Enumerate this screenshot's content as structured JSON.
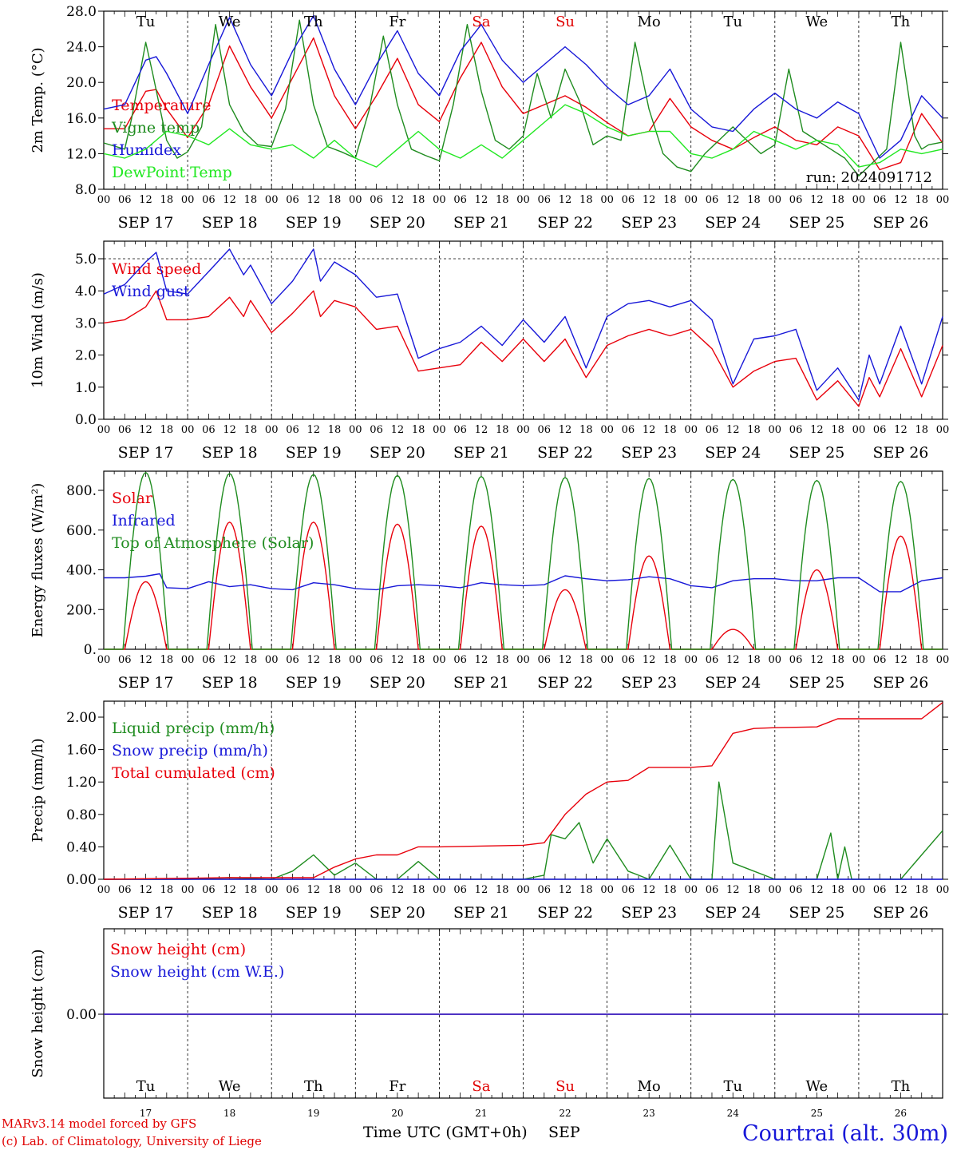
{
  "labels": {
    "days": [
      "Tu",
      "We",
      "Th",
      "Fr",
      "Sa",
      "Su",
      "Mo",
      "Tu",
      "We",
      "Th"
    ],
    "day_colors": [
      "#000000",
      "#000000",
      "#000000",
      "#000000",
      "#e00000",
      "#e00000",
      "#000000",
      "#000000",
      "#000000",
      "#000000"
    ],
    "dates": [
      "SEP 17",
      "SEP 18",
      "SEP 19",
      "SEP 20",
      "SEP 21",
      "SEP 22",
      "SEP 23",
      "SEP 24",
      "SEP 25",
      "SEP 26"
    ],
    "day_numbers": [
      "17",
      "18",
      "19",
      "20",
      "21",
      "22",
      "23",
      "24",
      "25",
      "26"
    ],
    "hour_ticks": [
      "00",
      "06",
      "12",
      "18"
    ],
    "run": "run: 2024091712",
    "footer_model": "MARv3.14 model forced by GFS",
    "footer_lab": "(c) Lab. of Climatology, University of Liege",
    "x_axis_title": "Time UTC (GMT+0h)",
    "month": "SEP",
    "location": "Courtrai (alt. 30m)"
  },
  "chart_data": [
    {
      "type": "line",
      "ylabel": "2m Temp. (°C)",
      "ylim": [
        8,
        28
      ],
      "yticks": [
        "8.0",
        "12.0",
        "16.0",
        "20.0",
        "24.0",
        "28.0"
      ],
      "x_unit": "hours from 2024-09-17 00 UTC",
      "series": [
        {
          "name": "Temperature",
          "color": "#e8000b",
          "x": [
            0,
            6,
            12,
            15,
            18,
            24,
            30,
            36,
            42,
            48,
            54,
            60,
            66,
            72,
            78,
            84,
            90,
            96,
            102,
            108,
            114,
            120,
            126,
            132,
            138,
            144,
            150,
            156,
            162,
            168,
            174,
            180,
            186,
            192,
            198,
            204,
            210,
            216,
            222,
            228,
            234,
            240
          ],
          "y": [
            14.8,
            14.8,
            19,
            19.2,
            17,
            13.8,
            17.5,
            24.1,
            19.5,
            16,
            20.5,
            25,
            18.5,
            14.8,
            18.5,
            22.7,
            17.5,
            15.6,
            20.5,
            24.5,
            19.5,
            16.5,
            17.5,
            18.5,
            17.2,
            15.5,
            14,
            14.5,
            18.2,
            15,
            13.5,
            12.5,
            13.8,
            15,
            13.5,
            13,
            15,
            14,
            10.2,
            11,
            16.5,
            13.2
          ]
        },
        {
          "name": "Vigne temp",
          "color": "#1f8c1f",
          "x": [
            0,
            6,
            8,
            12,
            14,
            18,
            21,
            24,
            28,
            32,
            36,
            40,
            44,
            48,
            52,
            56,
            60,
            64,
            68,
            72,
            76,
            80,
            84,
            88,
            92,
            96,
            100,
            104,
            108,
            112,
            116,
            120,
            124,
            128,
            132,
            136,
            140,
            144,
            148,
            152,
            156,
            160,
            164,
            168,
            172,
            176,
            180,
            184,
            188,
            192,
            196,
            200,
            204,
            208,
            212,
            216,
            220,
            224,
            228,
            232,
            234,
            236,
            240
          ],
          "y": [
            13.2,
            12.5,
            16,
            24.5,
            21,
            13.5,
            11.5,
            12.2,
            15,
            26.5,
            17.5,
            14.5,
            13,
            12.8,
            17,
            27,
            17.5,
            12.8,
            12.2,
            11.5,
            17,
            25.2,
            17.5,
            12.5,
            11.8,
            11.2,
            17.5,
            26.5,
            19,
            13.5,
            12.5,
            14,
            21,
            16,
            21.5,
            18,
            13,
            14,
            13.5,
            24.5,
            17,
            12,
            10.5,
            10,
            12,
            13.5,
            15,
            13.5,
            12,
            13,
            21.5,
            14.5,
            13.5,
            12.5,
            11.5,
            9.5,
            11,
            12.5,
            24.5,
            14,
            12.5,
            13,
            13.3
          ]
        },
        {
          "name": "Humidex",
          "color": "#1818d8",
          "x": [
            0,
            6,
            12,
            15,
            18,
            24,
            30,
            36,
            42,
            48,
            54,
            60,
            66,
            72,
            78,
            84,
            90,
            96,
            102,
            108,
            114,
            120,
            126,
            132,
            138,
            144,
            150,
            156,
            162,
            168,
            174,
            180,
            186,
            192,
            198,
            204,
            210,
            216,
            222,
            228,
            234,
            240
          ],
          "y": [
            17,
            17.5,
            22.5,
            22.9,
            21,
            16.5,
            22,
            27.3,
            22,
            18.5,
            23.5,
            27.5,
            21.5,
            17.5,
            22,
            25.8,
            21,
            18.5,
            23.5,
            26.5,
            22.5,
            20,
            22,
            24,
            22,
            19.5,
            17.5,
            18.5,
            21.5,
            17,
            15,
            14.5,
            17,
            18.8,
            17,
            16,
            17.8,
            16.5,
            11.5,
            13.5,
            18.5,
            16
          ]
        },
        {
          "name": "DewPoint Temp",
          "color": "#22e822",
          "x": [
            0,
            6,
            12,
            18,
            24,
            30,
            36,
            42,
            48,
            54,
            60,
            66,
            72,
            78,
            84,
            90,
            96,
            102,
            108,
            114,
            120,
            126,
            132,
            138,
            144,
            150,
            156,
            162,
            168,
            174,
            180,
            186,
            192,
            198,
            204,
            210,
            216,
            222,
            228,
            234,
            240
          ],
          "y": [
            12,
            11.5,
            12.5,
            14.5,
            14,
            13,
            14.8,
            13,
            12.5,
            13,
            11.5,
            13.5,
            11.5,
            10.5,
            12.5,
            14.5,
            12.5,
            11.5,
            13,
            11.5,
            13.5,
            15.5,
            17.5,
            16.5,
            15,
            14,
            14.5,
            14.5,
            12,
            11.5,
            12.5,
            14.5,
            13.5,
            12.5,
            13.5,
            13,
            10.5,
            11,
            12.5,
            12,
            12.5
          ]
        }
      ]
    },
    {
      "type": "line",
      "ylabel": "10m Wind (m/s)",
      "ylim": [
        0,
        5.5
      ],
      "yticks": [
        "0.0",
        "1.0",
        "2.0",
        "3.0",
        "4.0",
        "5.0"
      ],
      "reference_line": 5.0,
      "x_unit": "hours from 2024-09-17 00 UTC",
      "series": [
        {
          "name": "Wind speed",
          "color": "#e8000b",
          "x": [
            0,
            6,
            12,
            15,
            18,
            24,
            30,
            36,
            40,
            42,
            48,
            54,
            60,
            62,
            66,
            72,
            78,
            84,
            90,
            96,
            102,
            108,
            114,
            120,
            126,
            132,
            138,
            144,
            150,
            156,
            162,
            168,
            174,
            180,
            186,
            192,
            198,
            204,
            210,
            216,
            219,
            222,
            228,
            234,
            240
          ],
          "y": [
            3,
            3.1,
            3.5,
            4,
            3.1,
            3.1,
            3.2,
            3.8,
            3.2,
            3.7,
            2.7,
            3.3,
            4,
            3.2,
            3.7,
            3.5,
            2.8,
            2.9,
            1.5,
            1.6,
            1.7,
            2.4,
            1.8,
            2.5,
            1.8,
            2.5,
            1.3,
            2.3,
            2.6,
            2.8,
            2.6,
            2.8,
            2.2,
            1,
            1.5,
            1.8,
            1.9,
            0.6,
            1.2,
            0.4,
            1.3,
            0.7,
            2.2,
            0.7,
            2.3
          ]
        },
        {
          "name": "Wind gust",
          "color": "#1818d8",
          "x": [
            0,
            6,
            12,
            15,
            18,
            24,
            30,
            36,
            40,
            42,
            48,
            54,
            60,
            62,
            66,
            72,
            78,
            84,
            90,
            96,
            102,
            108,
            114,
            120,
            126,
            132,
            138,
            144,
            150,
            156,
            162,
            168,
            174,
            180,
            186,
            192,
            198,
            204,
            210,
            216,
            219,
            222,
            228,
            234,
            240
          ],
          "y": [
            3.9,
            4.2,
            4.9,
            5.2,
            4,
            3.9,
            4.6,
            5.3,
            4.5,
            4.8,
            3.6,
            4.3,
            5.3,
            4.3,
            4.9,
            4.5,
            3.8,
            3.9,
            1.9,
            2.2,
            2.4,
            2.9,
            2.3,
            3.1,
            2.4,
            3.2,
            1.6,
            3.2,
            3.6,
            3.7,
            3.5,
            3.7,
            3.1,
            1.1,
            2.5,
            2.6,
            2.8,
            0.9,
            1.6,
            0.6,
            2,
            1.1,
            2.9,
            1.1,
            3.2
          ]
        }
      ]
    },
    {
      "type": "line",
      "ylabel": "Energy fluxes (W/m²)",
      "ylim": [
        0,
        900
      ],
      "yticks": [
        "0.",
        "200.",
        "400.",
        "600.",
        "800."
      ],
      "x_unit": "hours from 2024-09-17 00 UTC",
      "series": [
        {
          "name": "Solar",
          "color": "#e8000b",
          "pattern": "daily",
          "sunrise": 6,
          "sunset": 18,
          "peaks": [
            340,
            640,
            640,
            630,
            620,
            300,
            470,
            100,
            400,
            570
          ]
        },
        {
          "name": "Infrared",
          "color": "#1818d8",
          "x": [
            0,
            6,
            12,
            16,
            18,
            24,
            30,
            36,
            42,
            48,
            54,
            60,
            66,
            72,
            78,
            84,
            90,
            96,
            102,
            108,
            114,
            120,
            126,
            132,
            138,
            144,
            150,
            156,
            162,
            168,
            174,
            180,
            186,
            192,
            198,
            204,
            210,
            216,
            222,
            228,
            234,
            240
          ],
          "y": [
            360,
            360,
            368,
            380,
            310,
            305,
            340,
            315,
            325,
            305,
            300,
            335,
            325,
            305,
            300,
            320,
            325,
            320,
            310,
            335,
            325,
            320,
            325,
            370,
            355,
            345,
            350,
            365,
            355,
            320,
            310,
            345,
            355,
            355,
            345,
            345,
            360,
            360,
            290,
            290,
            345,
            360
          ]
        },
        {
          "name": "Top of Atmosphere (Solar)",
          "color": "#1f8c1f",
          "pattern": "daily",
          "sunrise": 5.5,
          "sunset": 18.5,
          "peaks": [
            890,
            885,
            880,
            875,
            870,
            865,
            860,
            855,
            850,
            845
          ]
        }
      ]
    },
    {
      "type": "line",
      "ylabel": "Precip (mm/h)",
      "ylim": [
        0,
        2.2
      ],
      "yticks": [
        "0.00",
        "0.40",
        "0.80",
        "1.20",
        "1.60",
        "2.00"
      ],
      "x_unit": "hours from 2024-09-17 00 UTC",
      "series": [
        {
          "name": "Liquid precip (mm/h)",
          "color": "#1f8c1f",
          "x": [
            0,
            12,
            24,
            36,
            48,
            54,
            60,
            66,
            72,
            78,
            84,
            90,
            96,
            108,
            120,
            126,
            128,
            132,
            136,
            140,
            144,
            150,
            156,
            162,
            168,
            174,
            176,
            180,
            186,
            192,
            204,
            208,
            210,
            212,
            214,
            216,
            228,
            234,
            240
          ],
          "y": [
            0,
            0,
            0,
            0.02,
            0,
            0.1,
            0.3,
            0.05,
            0.2,
            0,
            0,
            0.22,
            0,
            0,
            0,
            0.05,
            0.55,
            0.5,
            0.7,
            0.2,
            0.5,
            0.1,
            0,
            0.42,
            0,
            0,
            1.2,
            0.2,
            0.1,
            0,
            0,
            0.57,
            0,
            0.4,
            0,
            0,
            0,
            0.3,
            0.6
          ]
        },
        {
          "name": "Snow precip (mm/h)",
          "color": "#1818d8",
          "x": [
            0,
            240
          ],
          "y": [
            0,
            0
          ]
        },
        {
          "name": "Total cumulated (cm)",
          "color": "#e8000b",
          "x": [
            0,
            36,
            60,
            66,
            72,
            78,
            84,
            90,
            96,
            108,
            120,
            126,
            132,
            138,
            144,
            150,
            156,
            162,
            168,
            174,
            180,
            186,
            192,
            204,
            210,
            216,
            234,
            240
          ],
          "y": [
            0,
            0.02,
            0.02,
            0.15,
            0.25,
            0.3,
            0.3,
            0.4,
            0.4,
            0.41,
            0.42,
            0.45,
            0.8,
            1.05,
            1.2,
            1.22,
            1.38,
            1.38,
            1.38,
            1.4,
            1.8,
            1.86,
            1.87,
            1.88,
            1.98,
            1.98,
            1.98,
            2.18
          ]
        }
      ]
    },
    {
      "type": "line",
      "ylabel": "Snow height (cm)",
      "ylim": [
        -1,
        1
      ],
      "yticks": [
        "0.00"
      ],
      "x_unit": "hours from 2024-09-17 00 UTC",
      "series": [
        {
          "name": "Snow height (cm)",
          "color": "#e8000b",
          "x": [
            0,
            240
          ],
          "y": [
            0,
            0
          ]
        },
        {
          "name": "Snow height (cm W.E.)",
          "color": "#1818d8",
          "x": [
            0,
            240
          ],
          "y": [
            0,
            0
          ]
        }
      ]
    }
  ]
}
